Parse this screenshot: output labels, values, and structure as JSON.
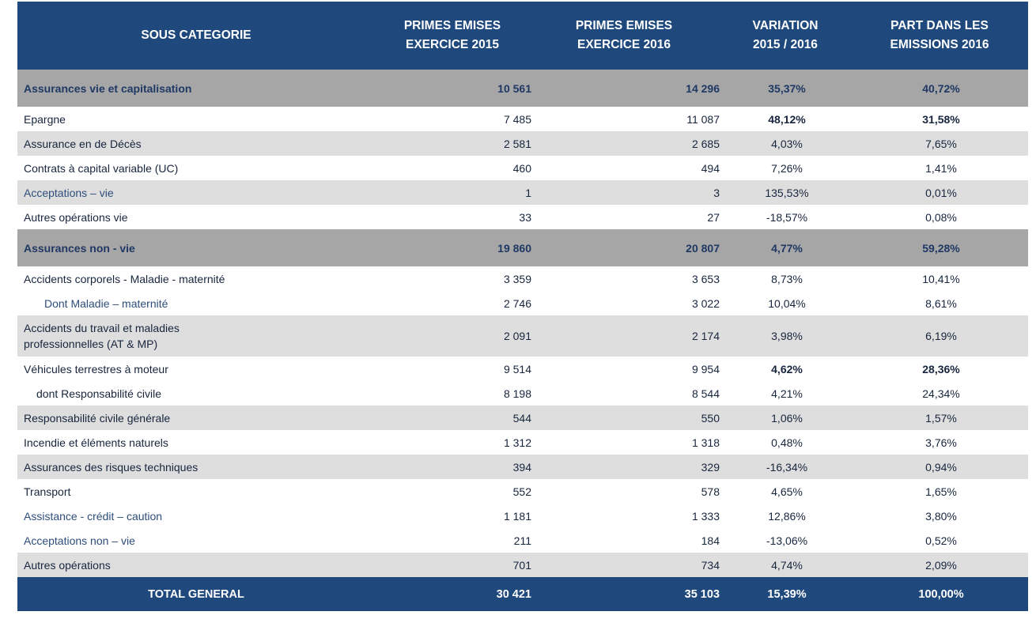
{
  "header": {
    "col_category": "SOUS CATEGORIE",
    "col_2015": "PRIMES  EMISES\nEXERCICE  2015",
    "col_2016": "PRIMES  EMISES\nEXERCICE  2016",
    "col_variation": "VARIATION\n2015 / 2016",
    "col_part": "PART DANS LES\nEMISSIONS 2016"
  },
  "rows": [
    {
      "type": "section",
      "label": "Assurances vie et capitalisation",
      "v2015": "10 561",
      "v2016": "14 296",
      "variation": "35,37%",
      "part": "40,72%"
    },
    {
      "type": "plain",
      "label": "Epargne",
      "v2015": "7 485",
      "v2016": "11 087",
      "variation": "48,12%",
      "part": "31,58%",
      "bold_values": true
    },
    {
      "type": "alt",
      "label": "Assurance en de Décès",
      "v2015": "2 581",
      "v2016": "2 685",
      "variation": "4,03%",
      "part": "7,65%"
    },
    {
      "type": "plain",
      "label": "Contrats à capital variable (UC)",
      "v2015": "460",
      "v2016": "494",
      "variation": "7,26%",
      "part": "1,41%"
    },
    {
      "type": "alt",
      "label": "Acceptations – vie",
      "v2015": "1",
      "v2016": "3",
      "variation": "135,53%",
      "part": "0,01%",
      "blue_label": true
    },
    {
      "type": "plain",
      "label": "Autres opérations vie",
      "v2015": "33",
      "v2016": "27",
      "variation": "-18,57%",
      "part": "0,08%"
    },
    {
      "type": "section",
      "label": "Assurances non - vie",
      "v2015": "19 860",
      "v2016": "20 807",
      "variation": "4,77%",
      "part": "59,28%"
    },
    {
      "type": "plain",
      "label": "Accidents corporels - Maladie - maternité",
      "v2015": "3 359",
      "v2016": "3 653",
      "variation": "8,73%",
      "part": "10,41%"
    },
    {
      "type": "plain",
      "label": "Dont Maladie – maternité",
      "v2015": "2 746",
      "v2016": "3 022",
      "variation": "10,04%",
      "part": "8,61%",
      "indent": 1,
      "blue_label": true
    },
    {
      "type": "alt",
      "label": "Accidents du travail et maladies\nprofessionnelles (AT & MP)",
      "v2015": "2 091",
      "v2016": "2 174",
      "variation": "3,98%",
      "part": "6,19%",
      "tall": true
    },
    {
      "type": "plain",
      "label": "Véhicules terrestres à moteur",
      "v2015": "9 514",
      "v2016": "9 954",
      "variation": "4,62%",
      "part": "28,36%",
      "bold_values": true
    },
    {
      "type": "plain",
      "label": "dont Responsabilité civile",
      "v2015": "8 198",
      "v2016": "8 544",
      "variation": "4,21%",
      "part": "24,34%",
      "indent": 2
    },
    {
      "type": "alt",
      "label": "Responsabilité civile générale",
      "v2015": "544",
      "v2016": "550",
      "variation": "1,06%",
      "part": "1,57%"
    },
    {
      "type": "plain",
      "label": "Incendie et éléments naturels",
      "v2015": "1 312",
      "v2016": "1 318",
      "variation": "0,48%",
      "part": "3,76%"
    },
    {
      "type": "alt",
      "label": "Assurances des risques techniques",
      "v2015": "394",
      "v2016": "329",
      "variation": "-16,34%",
      "part": "0,94%"
    },
    {
      "type": "plain",
      "label": "Transport",
      "v2015": "552",
      "v2016": "578",
      "variation": "4,65%",
      "part": "1,65%"
    },
    {
      "type": "plain",
      "label": "Assistance - crédit – caution",
      "v2015": "1 181",
      "v2016": "1 333",
      "variation": "12,86%",
      "part": "3,80%",
      "blue_label": true
    },
    {
      "type": "plain",
      "label": "Acceptations non – vie",
      "v2015": "211",
      "v2016": "184",
      "variation": "-13,06%",
      "part": "0,52%",
      "blue_label": true
    },
    {
      "type": "alt",
      "label": "Autres opérations",
      "v2015": "701",
      "v2016": "734",
      "variation": "4,74%",
      "part": "2,09%"
    },
    {
      "type": "total",
      "label": "TOTAL GENERAL",
      "v2015": "30 421",
      "v2016": "35 103",
      "variation": "15,39%",
      "part": "100,00%"
    }
  ]
}
